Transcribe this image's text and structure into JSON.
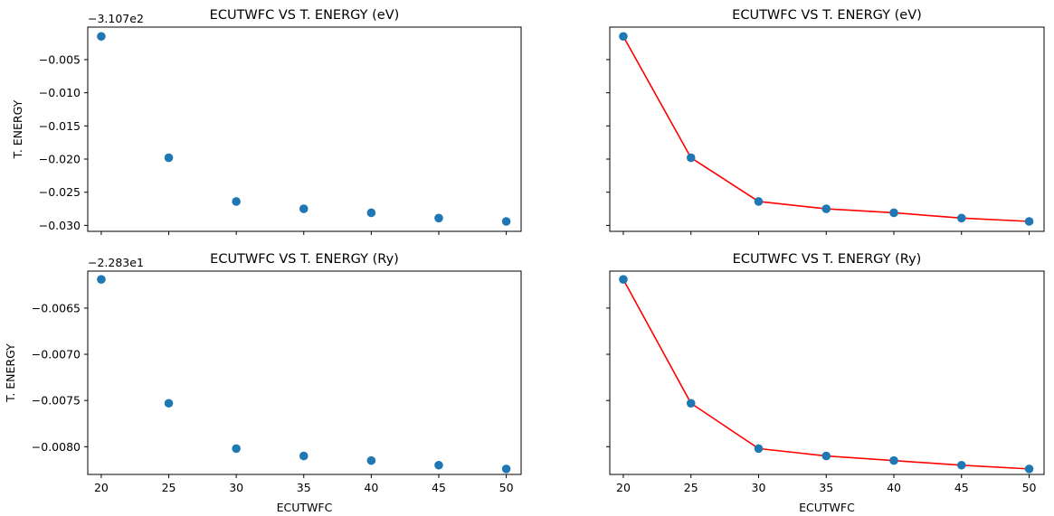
{
  "colors": {
    "points": "#1f77b4",
    "line": "#ff0000",
    "axes": "#000000"
  },
  "chart_data": [
    {
      "type": "scatter",
      "title": "ECUTWFC VS T. ENERGY (eV)",
      "xlabel": "",
      "ylabel": "T. ENERGY",
      "offset_text": "−3.107e2",
      "x": [
        20,
        25,
        30,
        35,
        40,
        45,
        50
      ],
      "y": [
        -0.0015,
        -0.0198,
        -0.0264,
        -0.0275,
        -0.0281,
        -0.0289,
        -0.0294
      ],
      "xlim": [
        19,
        51.1
      ],
      "ylim": [
        -0.0309,
        -0.0001
      ],
      "xticks": [
        20,
        25,
        30,
        35,
        40,
        45,
        50
      ],
      "xtick_labels": [],
      "yticks": [
        -0.005,
        -0.01,
        -0.015,
        -0.02,
        -0.025,
        -0.03
      ],
      "ytick_labels": [
        "−0.005",
        "−0.010",
        "−0.015",
        "−0.020",
        "−0.025",
        "−0.030"
      ],
      "line": false
    },
    {
      "type": "line",
      "title": "ECUTWFC VS T. ENERGY (eV)",
      "xlabel": "",
      "ylabel": "",
      "offset_text": "",
      "x": [
        20,
        25,
        30,
        35,
        40,
        45,
        50
      ],
      "y": [
        -0.0015,
        -0.0198,
        -0.0264,
        -0.0275,
        -0.0281,
        -0.0289,
        -0.0294
      ],
      "xlim": [
        19,
        51.1
      ],
      "ylim": [
        -0.0309,
        -0.0001
      ],
      "xticks": [
        20,
        25,
        30,
        35,
        40,
        45,
        50
      ],
      "xtick_labels": [],
      "yticks": [
        -0.005,
        -0.01,
        -0.015,
        -0.02,
        -0.025,
        -0.03
      ],
      "ytick_labels": [],
      "line": true
    },
    {
      "type": "scatter",
      "title": "ECUTWFC VS T. ENERGY (Ry)",
      "xlabel": "ECUTWFC",
      "ylabel": "T. ENERGY",
      "offset_text": "−2.283e1",
      "x": [
        20,
        25,
        30,
        35,
        40,
        45,
        50
      ],
      "y": [
        -0.00619,
        -0.00753,
        -0.00802,
        -0.0081,
        -0.00815,
        -0.0082,
        -0.00824
      ],
      "xlim": [
        19,
        51.1
      ],
      "ylim": [
        -0.0083,
        -0.0061
      ],
      "xticks": [
        20,
        25,
        30,
        35,
        40,
        45,
        50
      ],
      "xtick_labels": [
        "20",
        "25",
        "30",
        "35",
        "40",
        "45",
        "50"
      ],
      "yticks": [
        -0.0065,
        -0.007,
        -0.0075,
        -0.008
      ],
      "ytick_labels": [
        "−0.0065",
        "−0.0070",
        "−0.0075",
        "−0.0080"
      ],
      "line": false
    },
    {
      "type": "line",
      "title": "ECUTWFC VS T. ENERGY (Ry)",
      "xlabel": "ECUTWFC",
      "ylabel": "",
      "offset_text": "",
      "x": [
        20,
        25,
        30,
        35,
        40,
        45,
        50
      ],
      "y": [
        -0.00619,
        -0.00753,
        -0.00802,
        -0.0081,
        -0.00815,
        -0.0082,
        -0.00824
      ],
      "xlim": [
        19,
        51.1
      ],
      "ylim": [
        -0.0083,
        -0.0061
      ],
      "xticks": [
        20,
        25,
        30,
        35,
        40,
        45,
        50
      ],
      "xtick_labels": [
        "20",
        "25",
        "30",
        "35",
        "40",
        "45",
        "50"
      ],
      "yticks": [
        -0.0065,
        -0.007,
        -0.0075,
        -0.008
      ],
      "ytick_labels": [],
      "line": true
    }
  ]
}
